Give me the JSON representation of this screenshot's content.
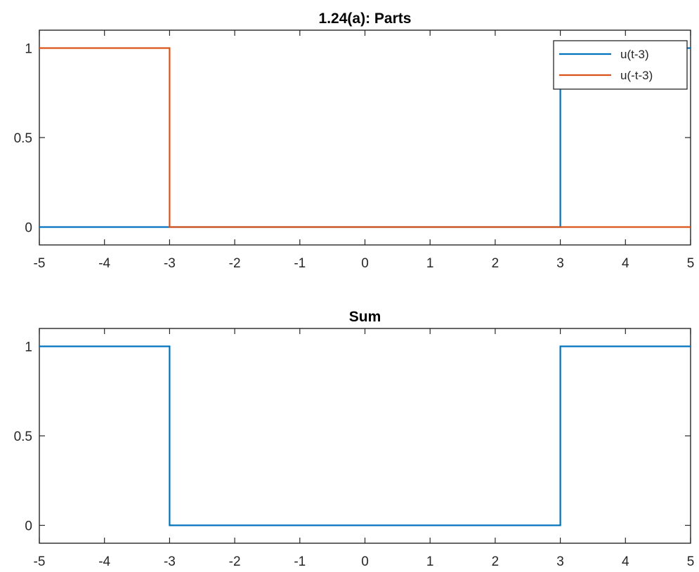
{
  "chart_data": [
    {
      "type": "line",
      "title": "1.24(a): Parts",
      "xlim": [
        -5,
        5
      ],
      "ylim": [
        -0.1,
        1.1
      ],
      "xticks": [
        -5,
        -4,
        -3,
        -2,
        -1,
        0,
        1,
        2,
        3,
        4,
        5
      ],
      "yticks": [
        0,
        0.5,
        1
      ],
      "xtick_labels": [
        "-5",
        "-4",
        "-3",
        "-2",
        "-1",
        "0",
        "1",
        "2",
        "3",
        "4",
        "5"
      ],
      "ytick_labels": [
        "0",
        "0.5",
        "1"
      ],
      "legend": {
        "placement": "top-right"
      },
      "series": [
        {
          "name": "u(t-3)",
          "color": "#0072BD",
          "x": [
            -5,
            3,
            3,
            5
          ],
          "y": [
            0,
            0,
            1,
            1
          ]
        },
        {
          "name": "u(-t-3)",
          "color": "#D95319",
          "x": [
            -5,
            -3,
            -3,
            5
          ],
          "y": [
            1,
            1,
            0,
            0
          ]
        }
      ]
    },
    {
      "type": "line",
      "title": "Sum",
      "xlim": [
        -5,
        5
      ],
      "ylim": [
        -0.1,
        1.1
      ],
      "xticks": [
        -5,
        -4,
        -3,
        -2,
        -1,
        0,
        1,
        2,
        3,
        4,
        5
      ],
      "yticks": [
        0,
        0.5,
        1
      ],
      "xtick_labels": [
        "-5",
        "-4",
        "-3",
        "-2",
        "-1",
        "0",
        "1",
        "2",
        "3",
        "4",
        "5"
      ],
      "ytick_labels": [
        "0",
        "0.5",
        "1"
      ],
      "series": [
        {
          "color": "#0072BD",
          "x": [
            -5,
            -3,
            -3,
            3,
            3,
            5
          ],
          "y": [
            1,
            1,
            0,
            0,
            1,
            1
          ]
        }
      ]
    }
  ]
}
